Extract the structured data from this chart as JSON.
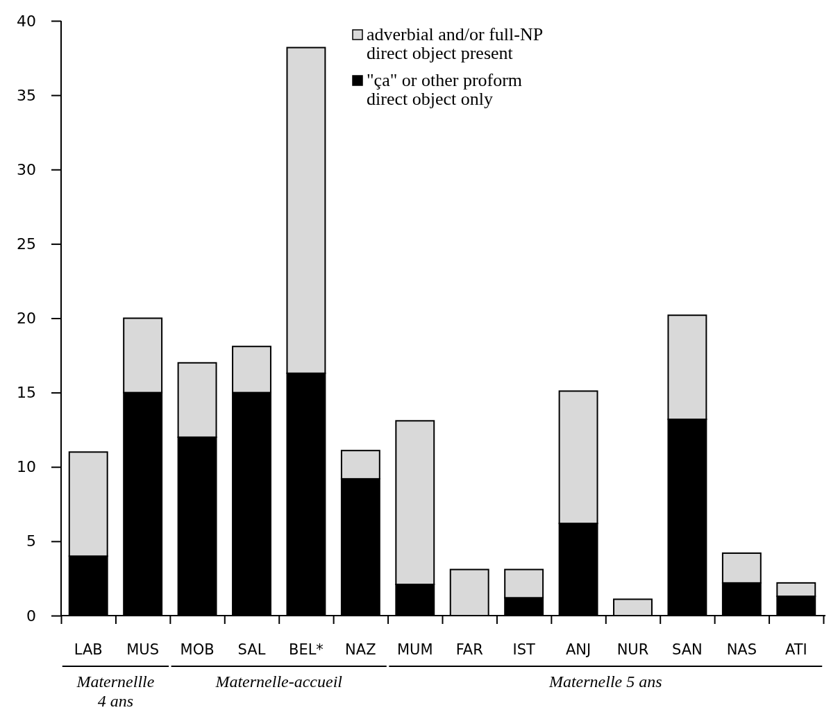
{
  "chart_data": {
    "type": "bar",
    "stacked": true,
    "categories": [
      "LAB",
      "MUS",
      "MOB",
      "SAL",
      "BEL*",
      "NAZ",
      "MUM",
      "FAR",
      "IST",
      "ANJ",
      "NUR",
      "SAN",
      "NAS",
      "ATI"
    ],
    "series": [
      {
        "name": "\"ça\" or other proform direct object only",
        "color": "#000000",
        "values": [
          4,
          15,
          12,
          15,
          16.3,
          9.2,
          2.1,
          0,
          1.2,
          6.2,
          0,
          13.2,
          2.2,
          1.3
        ]
      },
      {
        "name": "adverbial and/or full-NP direct object present",
        "color": "#d9d9d9",
        "values": [
          7,
          5,
          5,
          3.1,
          21.9,
          1.9,
          11,
          3.1,
          1.9,
          8.9,
          1.1,
          7,
          2,
          0.9
        ]
      }
    ],
    "ylim": [
      0,
      40
    ],
    "yticks": [
      0,
      5,
      10,
      15,
      20,
      25,
      30,
      35,
      40
    ],
    "grid": false,
    "legend": "top",
    "annotations": [
      "Maternellle 4 ans",
      "Maternelle-accueil",
      "Maternelle 5 ans"
    ]
  }
}
